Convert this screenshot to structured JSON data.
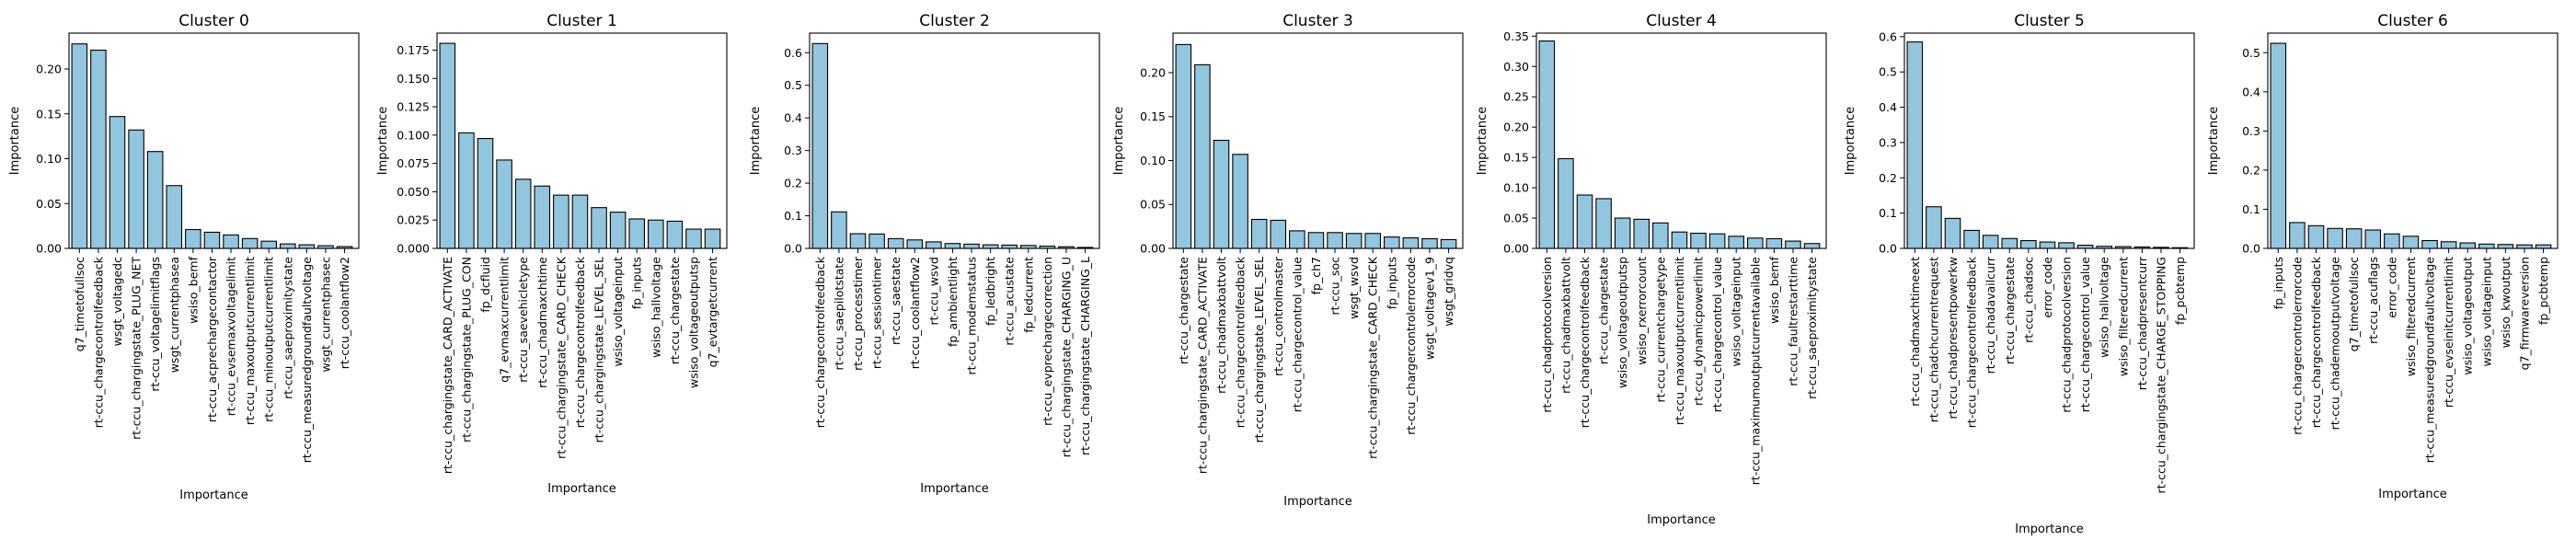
{
  "chart_data": [
    {
      "type": "bar",
      "title": "Cluster 0",
      "xlabel": "Importance",
      "ylabel": "Importance",
      "ylim": [
        0,
        0.24
      ],
      "yticks": [
        "0.00",
        "0.05",
        "0.10",
        "0.15",
        "0.20"
      ],
      "yticks_values": [
        0,
        0.05,
        0.1,
        0.15,
        0.2
      ],
      "categories": [
        "q7_timetofullsoc",
        "rt-ccu_chargecontrolfeedback",
        "wsgt_voltagedc",
        "rt-ccu_chargingstate_PLUG_NET",
        "rt-ccu_voltagelimitflags",
        "wsgt_currentphasea",
        "wsiso_bemf",
        "rt-ccu_acprechargecontactor",
        "rt-ccu_evsemaxvoltagelimit",
        "rt-ccu_maxoutputcurrentlimit",
        "rt-ccu_minoutputcurrentlimit",
        "rt-ccu_saeproximitystate",
        "rt-ccu_measuredgroundfaultvoltage",
        "wsgt_currentphasec",
        "rt-ccu_coolantflow2"
      ],
      "values": [
        0.228,
        0.221,
        0.147,
        0.132,
        0.108,
        0.07,
        0.021,
        0.018,
        0.015,
        0.011,
        0.008,
        0.005,
        0.004,
        0.003,
        0.002
      ]
    },
    {
      "type": "bar",
      "title": "Cluster 1",
      "xlabel": "Importance",
      "ylabel": "Importance",
      "ylim": [
        0,
        0.19
      ],
      "yticks": [
        "0.000",
        "0.025",
        "0.050",
        "0.075",
        "0.100",
        "0.125",
        "0.150",
        "0.175"
      ],
      "yticks_values": [
        0,
        0.025,
        0.05,
        0.075,
        0.1,
        0.125,
        0.15,
        0.175
      ],
      "categories": [
        "rt-ccu_chargingstate_CARD_ACTIVATE",
        "rt-ccu_chargingstate_PLUG_CON",
        "fp_dcfluid",
        "q7_evmaxcurrentlimit",
        "rt-ccu_saevehicletype",
        "rt-ccu_chadmaxchtime",
        "rt-ccu_chargingstate_CARD_CHECK",
        "rt-ccu_chargecontrolfeedback",
        "rt-ccu_chargingstate_LEVEL_SEL",
        "wsiso_voltageinput",
        "fp_inputs",
        "wsiso_hallvoltage",
        "rt-ccu_chargestate",
        "wsiso_voltageoutputsp",
        "q7_evtargetcurrent"
      ],
      "values": [
        0.181,
        0.102,
        0.097,
        0.078,
        0.061,
        0.055,
        0.047,
        0.047,
        0.036,
        0.032,
        0.026,
        0.025,
        0.024,
        0.017,
        0.017
      ]
    },
    {
      "type": "bar",
      "title": "Cluster 2",
      "xlabel": "Importance",
      "ylabel": "Importance",
      "ylim": [
        0,
        0.66
      ],
      "yticks": [
        "0.0",
        "0.1",
        "0.2",
        "0.3",
        "0.4",
        "0.5",
        "0.6"
      ],
      "yticks_values": [
        0,
        0.1,
        0.2,
        0.3,
        0.4,
        0.5,
        0.6
      ],
      "categories": [
        "rt-ccu_chargecontrolfeedback",
        "rt-ccu_saepilotstate",
        "rt-ccu_processtimer",
        "rt-ccu_sessiontimer",
        "rt-ccu_saestate",
        "rt-ccu_coolantflow2",
        "rt-ccu_wsvd",
        "fp_ambientlight",
        "rt-ccu_modemstatus",
        "fp_ledbright",
        "rt-ccu_acustate",
        "fp_ledcurrent",
        "rt-ccu_evprechargecorrection",
        "rt-ccu_chargingstate_CHARGING_U",
        "rt-ccu_chargingstate_CHARGING_L"
      ],
      "values": [
        0.628,
        0.112,
        0.045,
        0.044,
        0.03,
        0.026,
        0.02,
        0.015,
        0.013,
        0.011,
        0.01,
        0.009,
        0.007,
        0.005,
        0.003
      ]
    },
    {
      "type": "bar",
      "title": "Cluster 3",
      "xlabel": "Importance",
      "ylabel": "Importance",
      "ylim": [
        0,
        0.245
      ],
      "yticks": [
        "0.00",
        "0.05",
        "0.10",
        "0.15",
        "0.20"
      ],
      "yticks_values": [
        0,
        0.05,
        0.1,
        0.15,
        0.2
      ],
      "categories": [
        "rt-ccu_chargestate",
        "rt-ccu_chargingstate_CARD_ACTIVATE",
        "rt-ccu_chadmaxbattvolt",
        "rt-ccu_chargecontrolfeedback",
        "rt-ccu_chargingstate_LEVEL_SEL",
        "rt-ccu_controlmaster",
        "rt-ccu_chargecontrol_value",
        "fp_ch7",
        "rt-ccu_soc",
        "wsgt_wsvd",
        "rt-ccu_chargingstate_CARD_CHECK",
        "fp_inputs",
        "rt-ccu_chargercontrolerrorcode",
        "wsgt_voltagev1_9",
        "wsgt_gridvq"
      ],
      "values": [
        0.232,
        0.209,
        0.123,
        0.107,
        0.033,
        0.032,
        0.02,
        0.018,
        0.018,
        0.017,
        0.017,
        0.013,
        0.012,
        0.011,
        0.01
      ]
    },
    {
      "type": "bar",
      "title": "Cluster 4",
      "xlabel": "Importance",
      "ylabel": "Importance",
      "ylim": [
        0,
        0.355
      ],
      "yticks": [
        "0.00",
        "0.05",
        "0.10",
        "0.15",
        "0.20",
        "0.25",
        "0.30",
        "0.35"
      ],
      "yticks_values": [
        0,
        0.05,
        0.1,
        0.15,
        0.2,
        0.25,
        0.3,
        0.35
      ],
      "categories": [
        "rt-ccu_chadprotocolversion",
        "rt-ccu_chadmaxbattvolt",
        "rt-ccu_chargecontrolfeedback",
        "rt-ccu_chargestate",
        "wsiso_voltageoutputsp",
        "wsiso_rxerrorcount",
        "rt-ccu_currentchargetype",
        "rt-ccu_maxoutputcurrentlimit",
        "rt-ccu_dynamicpowerlimit",
        "rt-ccu_chargecontrol_value",
        "wsiso_voltageinput",
        "rt-ccu_maximumoutputcurrentavailable",
        "wsiso_bemf",
        "rt-ccu_faultrestarttime",
        "rt-ccu_saeproximitystate"
      ],
      "values": [
        0.342,
        0.148,
        0.088,
        0.082,
        0.05,
        0.048,
        0.042,
        0.027,
        0.025,
        0.024,
        0.02,
        0.017,
        0.016,
        0.012,
        0.008
      ]
    },
    {
      "type": "bar",
      "title": "Cluster 5",
      "xlabel": "Importance",
      "ylabel": "Importance",
      "ylim": [
        0,
        0.61
      ],
      "yticks": [
        "0.0",
        "0.1",
        "0.2",
        "0.3",
        "0.4",
        "0.5",
        "0.6"
      ],
      "yticks_values": [
        0,
        0.1,
        0.2,
        0.3,
        0.4,
        0.5,
        0.6
      ],
      "categories": [
        "rt-ccu_chadmaxchtimeext",
        "rt-ccu_chadchcurrentrequest",
        "rt-ccu_chadpresentpowerkw",
        "rt-ccu_chargecontrolfeedback",
        "rt-ccu_chadavailcurr",
        "rt-ccu_chargestate",
        "rt-ccu_chadsoc",
        "error_code",
        "rt-ccu_chadprotocolversion",
        "rt-ccu_chargecontrol_value",
        "wsiso_hallvoltage",
        "wsiso_filteredcurrent",
        "rt-ccu_chadpresentcurr",
        "rt-ccu_chargingstate_CHARGE_STOPPING",
        "fp_pcbtemp"
      ],
      "values": [
        0.585,
        0.118,
        0.085,
        0.051,
        0.037,
        0.028,
        0.022,
        0.018,
        0.016,
        0.009,
        0.006,
        0.005,
        0.004,
        0.003,
        0.002
      ]
    },
    {
      "type": "bar",
      "title": "Cluster 6",
      "xlabel": "Importance",
      "ylabel": "Importance",
      "ylim": [
        0,
        0.55
      ],
      "yticks": [
        "0.0",
        "0.1",
        "0.2",
        "0.3",
        "0.4",
        "0.5"
      ],
      "yticks_values": [
        0,
        0.1,
        0.2,
        0.3,
        0.4,
        0.5
      ],
      "categories": [
        "fp_inputs",
        "rt-ccu_chargercontrolerrorcode",
        "rt-ccu_chargecontrolfeedback",
        "rt-ccu_chademooutputvoltage",
        "q7_timetofullsoc",
        "rt-ccu_acuflags",
        "error_code",
        "wsiso_filteredcurrent",
        "rt-ccu_measuredgroundfaultvoltage",
        "rt-ccu_evseinitcurrentlimit",
        "wsiso_voltageoutput",
        "wsiso_voltageinput",
        "wsiso_kwoutput",
        "q7_firmwareversion",
        "fp_pcbtemp"
      ],
      "values": [
        0.524,
        0.066,
        0.058,
        0.051,
        0.05,
        0.047,
        0.037,
        0.031,
        0.02,
        0.017,
        0.014,
        0.011,
        0.01,
        0.009,
        0.009
      ]
    }
  ]
}
